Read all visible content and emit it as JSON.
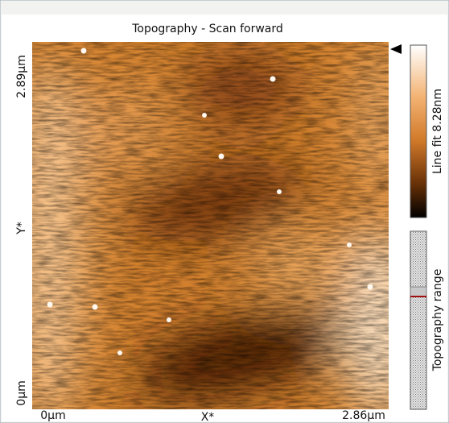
{
  "title": "Topography - Scan forward",
  "axes": {
    "y_top": "2.89μm",
    "y_label": "Y*",
    "y_bottom": "0μm",
    "x_left": "0μm",
    "x_label": "X*",
    "x_right": "2.86μm"
  },
  "colorbar": {
    "label": "Line fit 8.28nm"
  },
  "range_bar": {
    "label": "Topography range"
  }
}
